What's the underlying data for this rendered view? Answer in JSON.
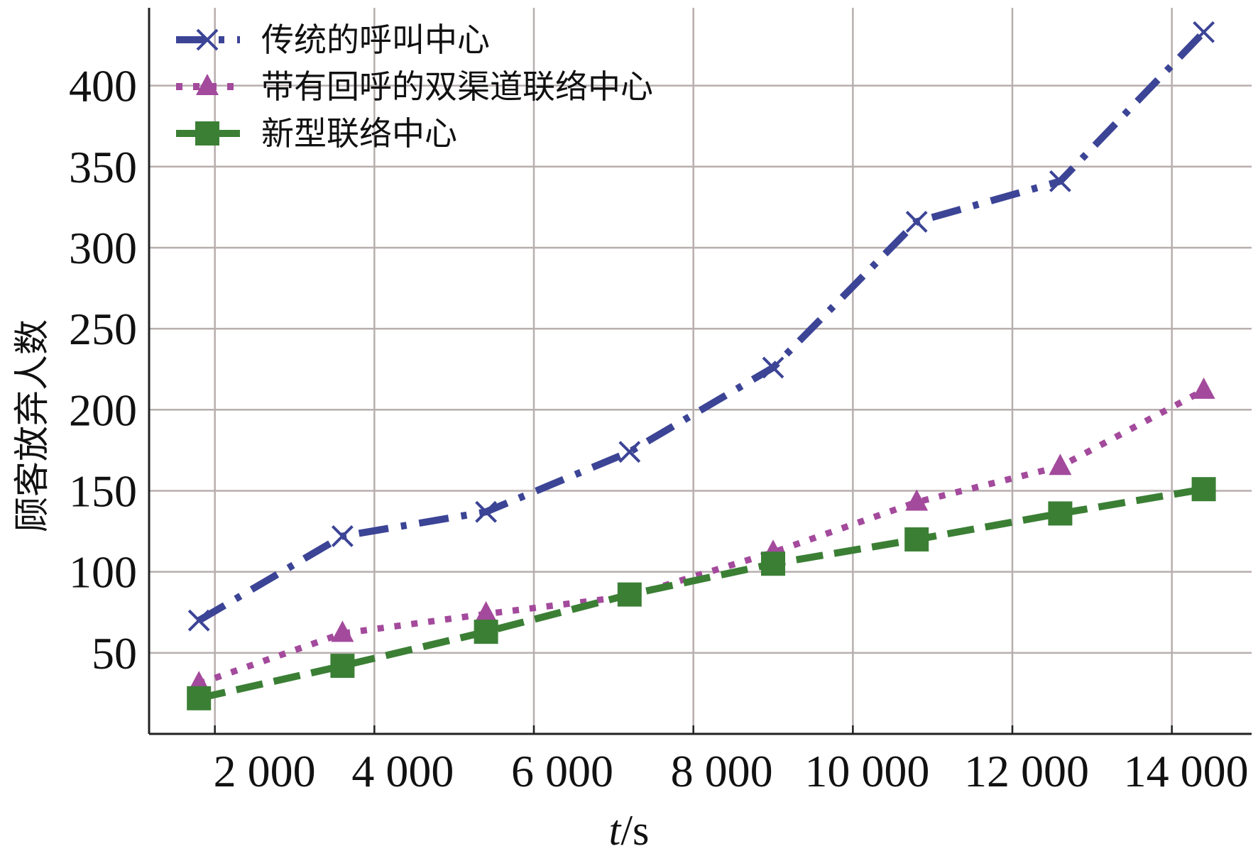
{
  "chart_data": {
    "type": "line",
    "title": "",
    "xlabel": "t/s",
    "ylabel": "顾客放弃人数",
    "xlim": [
      1175,
      15000
    ],
    "ylim": [
      0,
      448
    ],
    "grid": true,
    "legend_position": "top-left",
    "xticks": [
      2000,
      4000,
      6000,
      8000,
      10000,
      12000,
      14000
    ],
    "xtick_labels": [
      "2 000",
      "4 000",
      "6 000",
      "8 000",
      "10 000",
      "12 000",
      "14 000"
    ],
    "yticks": [
      50,
      100,
      150,
      200,
      250,
      300,
      350,
      400
    ],
    "ytick_labels": [
      "50",
      "100",
      "150",
      "200",
      "250",
      "300",
      "350",
      "400"
    ],
    "x": [
      1800,
      3600,
      5400,
      7200,
      9000,
      10800,
      12600,
      14400
    ],
    "series": [
      {
        "name": "传统的呼叫中心",
        "color": "#3c4496",
        "marker": "x",
        "dash": "dashdot",
        "values": [
          70,
          122,
          137,
          174,
          226,
          316,
          341,
          433
        ]
      },
      {
        "name": "带有回呼的双渠道联络中心",
        "color": "#a34a9c",
        "marker": "triangle",
        "dash": "dotted",
        "values": [
          31,
          62,
          74,
          85,
          112,
          143,
          165,
          212
        ]
      },
      {
        "name": "新型联络中心",
        "color": "#3b7f35",
        "marker": "square",
        "dash": "dashed",
        "values": [
          22,
          42,
          63,
          86,
          105,
          120,
          136,
          151
        ]
      }
    ]
  }
}
